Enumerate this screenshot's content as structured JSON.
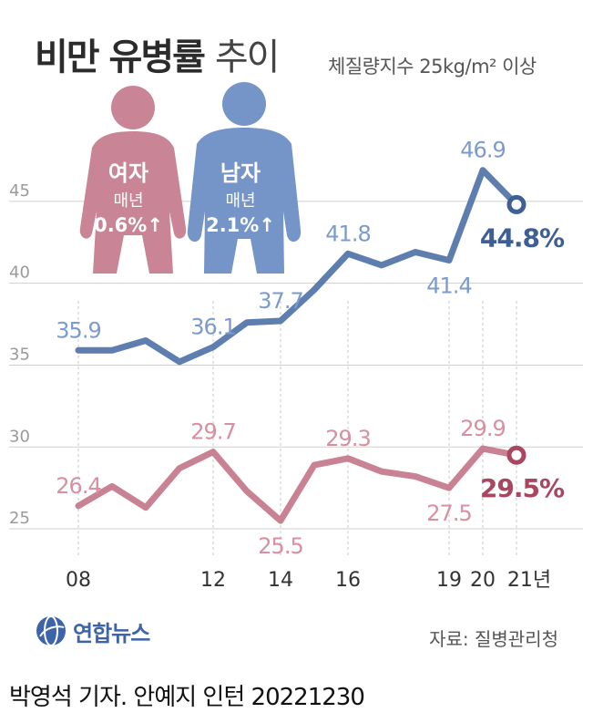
{
  "header": {
    "title_bold": "비만 유병률",
    "title_light": "추이",
    "subtitle": "체질량지수 25kg/m² 이상"
  },
  "figures": {
    "female": {
      "label": "여자",
      "rate_label": "매년",
      "rate_value": "0.6%↑"
    },
    "male": {
      "label": "남자",
      "rate_label": "매년",
      "rate_value": "2.1%↑"
    }
  },
  "footer": {
    "logo_text": "연합뉴스",
    "source": "자료: 질병관리청",
    "credit": "박영석 기자. 안예지 인턴  20221230"
  },
  "colors": {
    "male": "#4f73a8",
    "male_label": "#7b9bd0",
    "male_strong": "#3e5f95",
    "female": "#c4778a",
    "female_label": "#d88fa0",
    "female_strong": "#a8475f",
    "figure_female": "#c98595",
    "figure_male": "#7595c8",
    "grid": "#cfcfcf",
    "axis_text": "#9a9a9a"
  },
  "chart_data": {
    "type": "line",
    "x": [
      2008,
      2009,
      2010,
      2011,
      2012,
      2013,
      2014,
      2015,
      2016,
      2017,
      2018,
      2019,
      2020,
      2021
    ],
    "tick_labels": [
      {
        "x": 2008,
        "label": "08"
      },
      {
        "x": 2012,
        "label": "12"
      },
      {
        "x": 2014,
        "label": "14"
      },
      {
        "x": 2016,
        "label": "16"
      },
      {
        "x": 2019,
        "label": "19"
      },
      {
        "x": 2020,
        "label": "20"
      },
      {
        "x": 2021,
        "label": "21년"
      }
    ],
    "y_ticks": [
      25,
      30,
      35,
      40,
      45
    ],
    "ylim": [
      23.5,
      49.5
    ],
    "grid": true,
    "series": [
      {
        "key": "male",
        "values": [
          35.9,
          35.9,
          36.5,
          35.2,
          36.1,
          37.6,
          37.7,
          39.6,
          41.8,
          41.1,
          41.9,
          41.4,
          46.9,
          44.8
        ],
        "point_labels": [
          {
            "index": 0,
            "text": "35.9",
            "pos": "above"
          },
          {
            "index": 4,
            "text": "36.1",
            "pos": "above"
          },
          {
            "index": 6,
            "text": "37.7",
            "pos": "above"
          },
          {
            "index": 8,
            "text": "41.8",
            "pos": "above"
          },
          {
            "index": 11,
            "text": "41.4",
            "pos": "below"
          },
          {
            "index": 12,
            "text": "46.9",
            "pos": "above"
          }
        ],
        "final_label": "44.8%"
      },
      {
        "key": "female",
        "values": [
          26.4,
          27.6,
          26.3,
          28.7,
          29.7,
          27.3,
          25.5,
          28.9,
          29.3,
          28.5,
          28.2,
          27.5,
          29.9,
          29.5
        ],
        "point_labels": [
          {
            "index": 0,
            "text": "26.4",
            "pos": "above"
          },
          {
            "index": 4,
            "text": "29.7",
            "pos": "above"
          },
          {
            "index": 6,
            "text": "25.5",
            "pos": "below"
          },
          {
            "index": 8,
            "text": "29.3",
            "pos": "above"
          },
          {
            "index": 11,
            "text": "27.5",
            "pos": "below"
          },
          {
            "index": 12,
            "text": "29.9",
            "pos": "above"
          }
        ],
        "final_label": "29.5%"
      }
    ]
  }
}
